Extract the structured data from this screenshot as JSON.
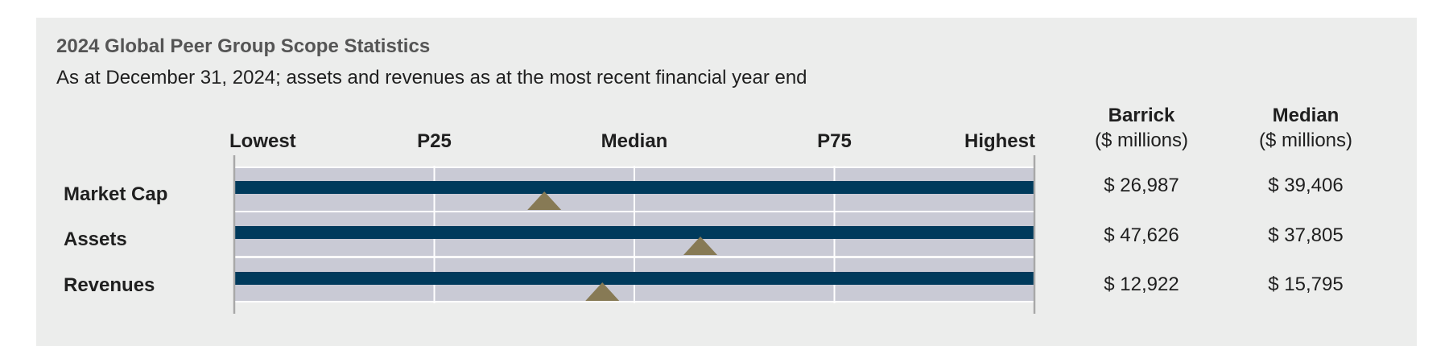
{
  "header": {
    "title": "2024 Global Peer Group Scope Statistics",
    "subtitle": "As at December 31, 2024; assets and revenues as at the most recent financial year end"
  },
  "columns": {
    "barrick": {
      "title": "Barrick",
      "unit": "($ millions)"
    },
    "median": {
      "title": "Median",
      "unit": "($ millions)"
    }
  },
  "chart_data": {
    "type": "bar",
    "title": "2024 Global Peer Group Scope Statistics",
    "subtitle": "As at December 31, 2024; assets and revenues as at the most recent financial year end",
    "scale_labels": [
      "Lowest",
      "P25",
      "Median",
      "P75",
      "Highest"
    ],
    "x_range": [
      0,
      4
    ],
    "categories": [
      "Market Cap",
      "Assets",
      "Revenues"
    ],
    "marker_positions": [
      1.55,
      2.33,
      1.84
    ],
    "barrick_values": [
      "$ 26,987",
      "$ 47,626",
      "$ 12,922"
    ],
    "median_values": [
      "$ 39,406",
      "$ 37,805",
      "$ 15,795"
    ],
    "grid": true,
    "colors": {
      "panel": "#ecedec",
      "track": "#c9cad5",
      "bar": "#003a5c",
      "marker": "#877a55",
      "grid": "#ffffff",
      "axis": "#a8a8a8"
    }
  }
}
